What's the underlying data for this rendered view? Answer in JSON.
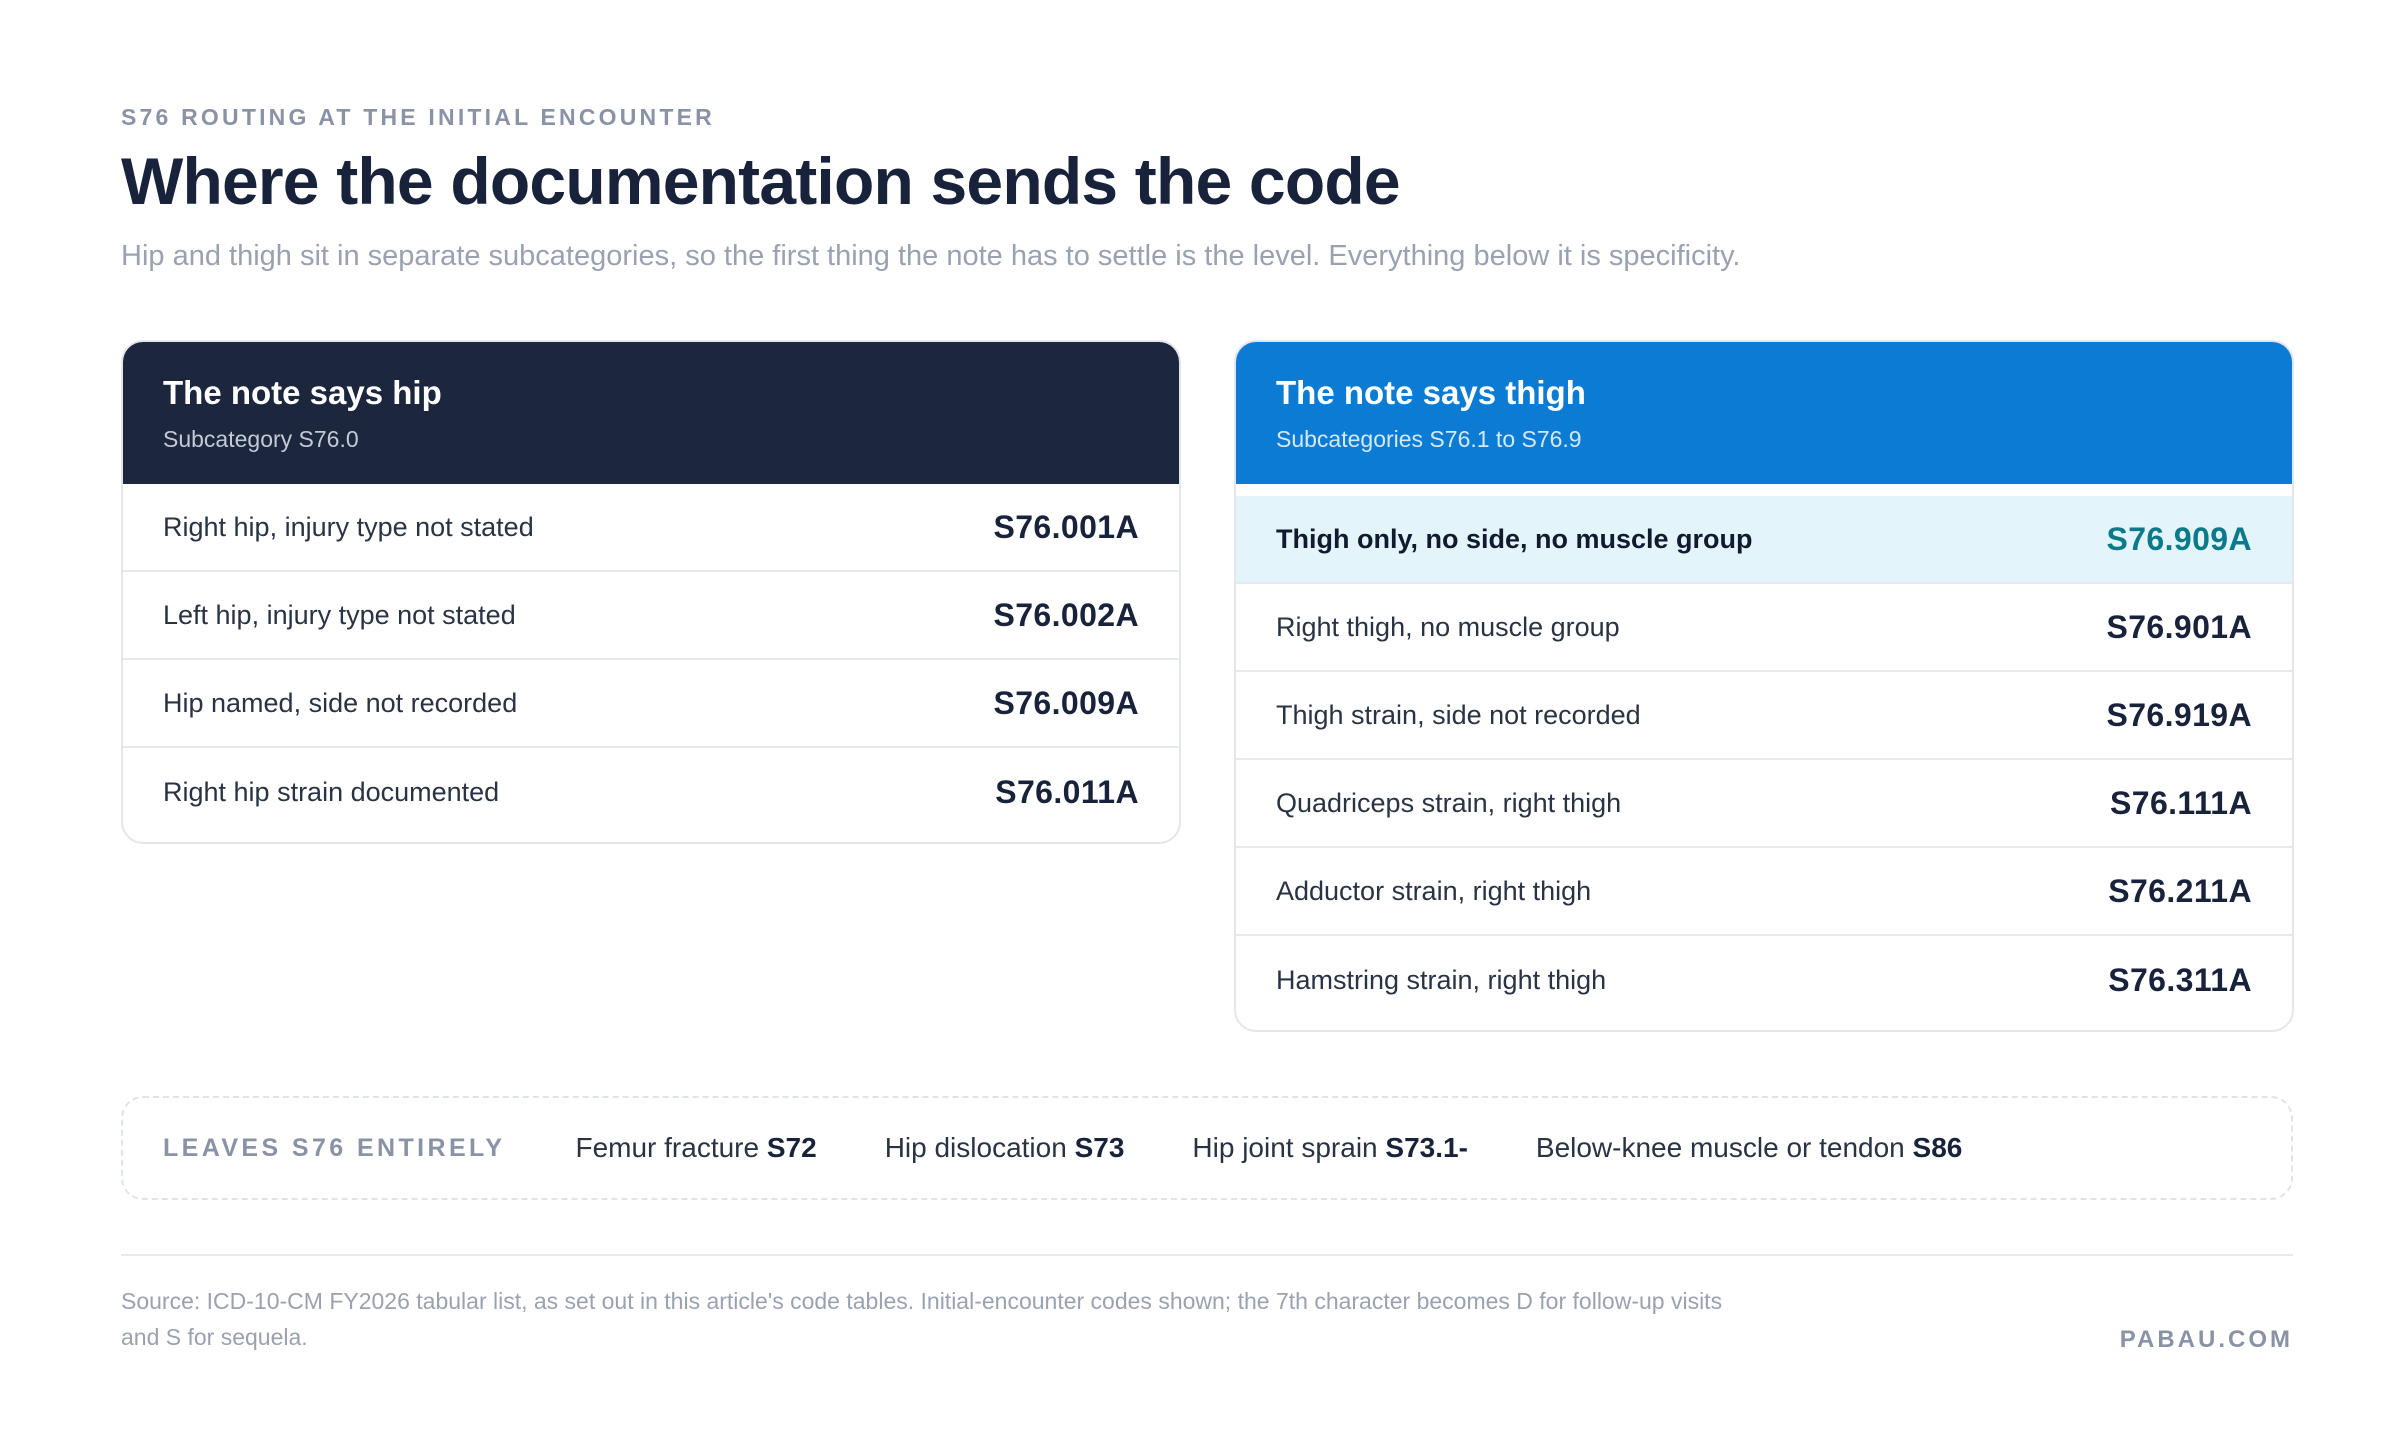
{
  "header": {
    "kicker": "S76 ROUTING AT THE INITIAL ENCOUNTER",
    "title": "Where the documentation sends the code",
    "subtitle": "Hip and thigh sit in separate subcategories, so the first thing the note has to settle is the level. Everything below it is specificity."
  },
  "hip_panel": {
    "title": "The note says hip",
    "subtitle": "Subcategory S76.0",
    "header_color": "#1c263d",
    "rows": [
      {
        "label": "Right hip, injury type not stated",
        "code": "S76.001A"
      },
      {
        "label": "Left hip, injury type not stated",
        "code": "S76.002A"
      },
      {
        "label": "Hip named, side not recorded",
        "code": "S76.009A"
      },
      {
        "label": "Right hip strain documented",
        "code": "S76.011A"
      }
    ]
  },
  "thigh_panel": {
    "title": "The note says thigh",
    "subtitle": "Subcategories S76.1 to S76.9",
    "header_color": "#0c7bd3",
    "highlight_color": "#e3f5fb",
    "rows": [
      {
        "label": "Thigh only, no side, no muscle group",
        "code": "S76.909A",
        "highlighted": true
      },
      {
        "label": "Right thigh, no muscle group",
        "code": "S76.901A"
      },
      {
        "label": "Thigh strain, side not recorded",
        "code": "S76.919A"
      },
      {
        "label": "Quadriceps strain, right thigh",
        "code": "S76.111A"
      },
      {
        "label": "Adductor strain, right thigh",
        "code": "S76.211A"
      },
      {
        "label": "Hamstring strain, right thigh",
        "code": "S76.311A"
      }
    ]
  },
  "leaves": {
    "label": "LEAVES S76 ENTIRELY",
    "items": [
      {
        "text": "Femur fracture",
        "code": "S72"
      },
      {
        "text": "Hip dislocation",
        "code": "S73"
      },
      {
        "text": "Hip joint sprain",
        "code": "S73.1-"
      },
      {
        "text": "Below-knee muscle or tendon",
        "code": "S86"
      }
    ]
  },
  "footer": {
    "source": "Source: ICD-10-CM FY2026 tabular list, as set out in this article's code tables. Initial-encounter codes shown; the 7th character becomes D for follow-up visits and S for sequela.",
    "brand": "PABAU.COM"
  }
}
